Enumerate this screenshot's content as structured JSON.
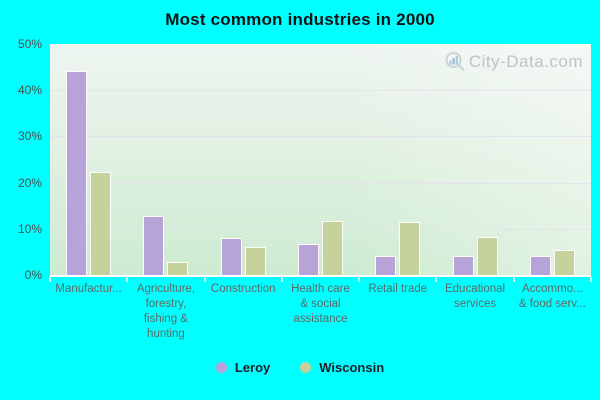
{
  "title": "Most common industries in 2000",
  "watermark": {
    "text": "City-Data.com",
    "icon": "magnifier-chart-icon"
  },
  "colors": {
    "page_background": "#00ffff",
    "leroy_bar": "#b8a3d8",
    "wisconsin_bar": "#c5d29c",
    "gridline": "#e6dfee",
    "y_label": "#4d4d4d",
    "x_label": "#5c6b68",
    "title_text": "#141414",
    "watermark_text": "#a9b4ba"
  },
  "chart_data": {
    "type": "bar",
    "title": "Most common industries in 2000",
    "xlabel": "",
    "ylabel": "",
    "ylim": [
      0,
      50
    ],
    "yticks_pct": [
      0,
      10,
      20,
      30,
      40,
      50
    ],
    "ytick_labels": [
      "0%",
      "10%",
      "20%",
      "30%",
      "40%",
      "50%"
    ],
    "grid": true,
    "legend_position": "bottom",
    "categories": [
      "Manufacturing",
      "Agriculture, forestry, fishing & hunting",
      "Construction",
      "Health care & social assistance",
      "Retail trade",
      "Educational services",
      "Accommodation & food services"
    ],
    "category_label_lines": [
      [
        "Manufactur..."
      ],
      [
        "Agriculture,",
        "forestry,",
        "fishing &",
        "hunting"
      ],
      [
        "Construction"
      ],
      [
        "Health care",
        "& social",
        "assistance"
      ],
      [
        "Retail trade"
      ],
      [
        "Educational",
        "services"
      ],
      [
        "Accommo...",
        "& food serv..."
      ]
    ],
    "series": [
      {
        "name": "Leroy",
        "color": "#b8a3d8",
        "values": [
          44.0,
          12.6,
          7.9,
          6.6,
          3.9,
          3.9,
          3.9
        ]
      },
      {
        "name": "Wisconsin",
        "color": "#c5d29c",
        "values": [
          22.0,
          2.7,
          5.8,
          11.4,
          11.2,
          8.1,
          5.3
        ]
      }
    ]
  }
}
